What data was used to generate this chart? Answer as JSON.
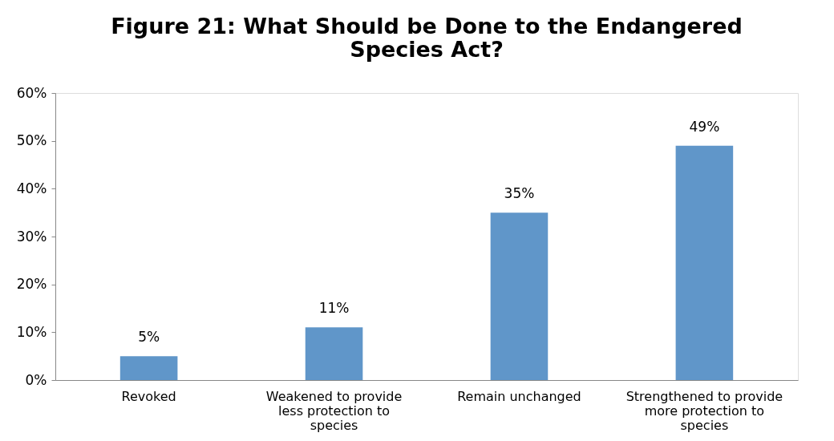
{
  "chart_data": {
    "type": "bar",
    "title": [
      "Figure 21: What Should be Done to the Endangered",
      "Species Act?"
    ],
    "categories": [
      "Revoked",
      "Weakened to provide less protection to species",
      "Remain unchanged",
      "Strengthened to provide more protection to species"
    ],
    "values": [
      5,
      11,
      35,
      49
    ],
    "value_labels": [
      "5%",
      "11%",
      "35%",
      "49%"
    ],
    "color": "#6096c9",
    "ylim": [
      0,
      60
    ],
    "yticks": [
      {
        "value": 0,
        "label": "0%"
      },
      {
        "value": 10,
        "label": "10%"
      },
      {
        "value": 20,
        "label": "20%"
      },
      {
        "value": 30,
        "label": "30%"
      },
      {
        "value": 40,
        "label": "40%"
      },
      {
        "value": 50,
        "label": "50%"
      },
      {
        "value": 60,
        "label": "60%"
      }
    ],
    "grid": false
  }
}
